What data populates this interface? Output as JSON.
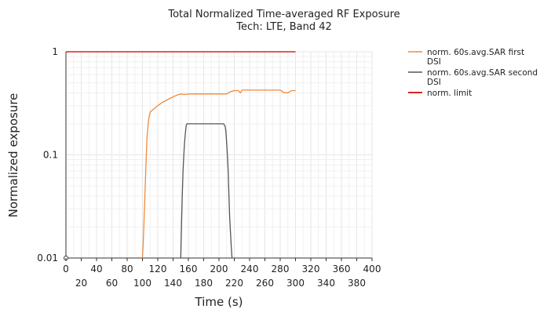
{
  "chart_data": {
    "type": "line",
    "title": "Total Normalized Time-averaged RF Exposure",
    "subtitle": "Tech: LTE, Band 42",
    "xlabel": "Time (s)",
    "ylabel": "Normalized exposure",
    "xlim": [
      0,
      400
    ],
    "ylim": [
      0.01,
      1
    ],
    "yscale": "log",
    "grid": true,
    "legend_position": "top-right, outside plot",
    "x_ticks_upper": [
      "0",
      "40",
      "80",
      "120",
      "160",
      "200",
      "240",
      "280",
      "320",
      "360",
      "400"
    ],
    "x_ticks_lower": [
      "20",
      "60",
      "100",
      "140",
      "180",
      "220",
      "260",
      "300",
      "340",
      "380"
    ],
    "y_ticks": [
      "1",
      "0.1",
      "0.01"
    ],
    "series": [
      {
        "name": "norm. 60s.avg.SAR first DSI",
        "color": "#f08a3a",
        "x": [
          100,
          101,
          102,
          103,
          104,
          105,
          106,
          108,
          110,
          115,
          120,
          125,
          130,
          135,
          140,
          145,
          150,
          155,
          160,
          180,
          200,
          210,
          215,
          220,
          225,
          228,
          230,
          240,
          260,
          280,
          285,
          290,
          295,
          300
        ],
        "y": [
          0.01,
          0.014,
          0.022,
          0.036,
          0.06,
          0.1,
          0.15,
          0.22,
          0.26,
          0.28,
          0.3,
          0.32,
          0.335,
          0.35,
          0.365,
          0.38,
          0.39,
          0.385,
          0.39,
          0.39,
          0.39,
          0.39,
          0.41,
          0.42,
          0.42,
          0.4,
          0.425,
          0.425,
          0.425,
          0.425,
          0.4,
          0.4,
          0.42,
          0.42
        ]
      },
      {
        "name": "norm. 60s.avg.SAR second DSI",
        "color": "#555555",
        "x": [
          150,
          151,
          152,
          153,
          154,
          155,
          156,
          157,
          158,
          160,
          165,
          180,
          200,
          206,
          208,
          209,
          210,
          211,
          212,
          213,
          214,
          215,
          216,
          217
        ],
        "y": [
          0.01,
          0.02,
          0.04,
          0.07,
          0.1,
          0.13,
          0.16,
          0.19,
          0.2,
          0.2,
          0.2,
          0.2,
          0.2,
          0.2,
          0.19,
          0.17,
          0.13,
          0.1,
          0.07,
          0.04,
          0.025,
          0.018,
          0.013,
          0.01
        ]
      },
      {
        "name": "norm. limit",
        "color": "#dd2222",
        "x": [
          0,
          300
        ],
        "y": [
          1,
          1
        ]
      }
    ]
  }
}
